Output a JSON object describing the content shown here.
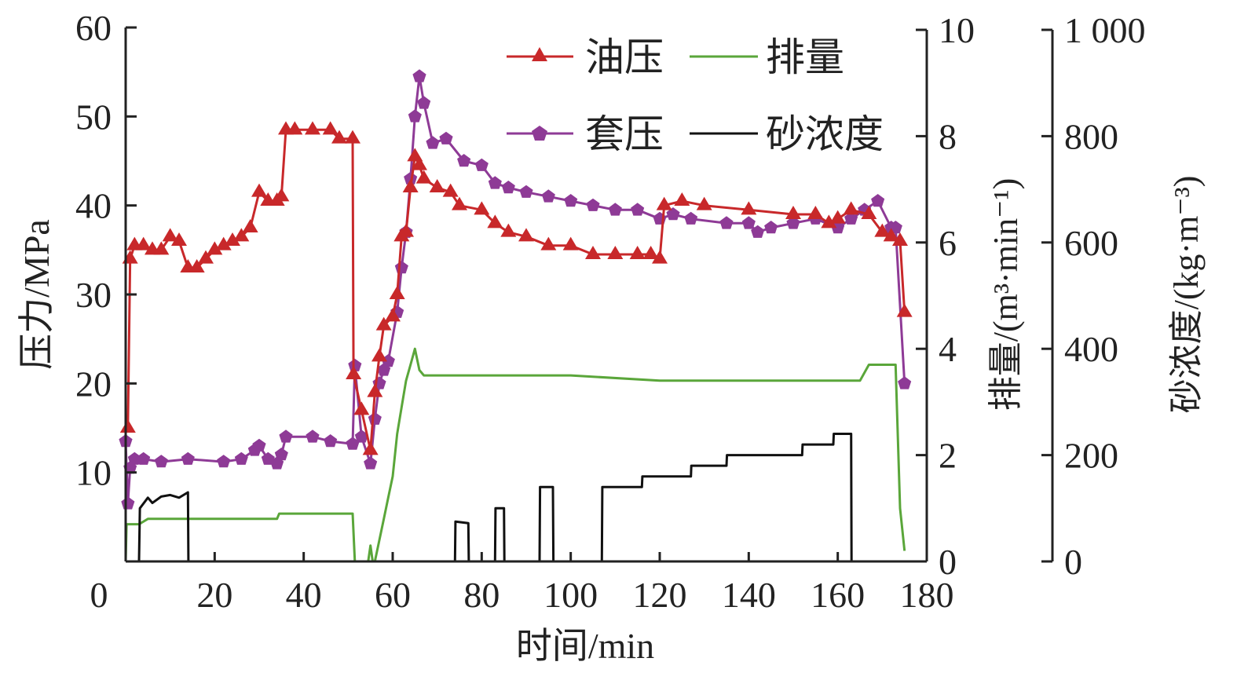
{
  "chart_data": {
    "type": "line",
    "title": "",
    "xlabel": "时间/min",
    "xlim": [
      0,
      180
    ],
    "xticks": [
      "0",
      "20",
      "40",
      "60",
      "80",
      "100",
      "120",
      "140",
      "160",
      "180"
    ],
    "axes": {
      "left": {
        "label": "压力/MPa",
        "lim": [
          0,
          60
        ],
        "ticks": [
          "10",
          "20",
          "30",
          "40",
          "50",
          "60"
        ]
      },
      "right1": {
        "label": "排量/(m³·min⁻¹)",
        "lim": [
          0,
          10
        ],
        "ticks": [
          "0",
          "2",
          "4",
          "6",
          "8",
          "10"
        ]
      },
      "right2": {
        "label": "砂浓度/(kg·m⁻³)",
        "lim": [
          0,
          1000
        ],
        "ticks": [
          "0",
          "200",
          "400",
          "600",
          "800",
          "1 000"
        ]
      }
    },
    "grid": false,
    "legend_position": "top-right",
    "series": [
      {
        "name": "油压",
        "axis": "left",
        "color": "#c8282a",
        "marker": "triangle",
        "x": [
          0.5,
          1,
          2,
          4,
          6,
          8,
          10,
          12,
          14,
          16,
          18,
          20,
          22,
          24,
          26,
          28,
          30,
          32,
          34,
          35,
          36,
          38,
          42,
          46,
          48,
          51,
          51.2,
          53,
          55,
          56,
          57,
          58,
          60,
          61,
          62,
          63,
          64,
          65,
          66,
          67,
          70,
          73,
          75,
          80,
          83,
          86,
          90,
          95,
          100,
          105,
          110,
          115,
          118,
          120,
          121,
          125,
          130,
          140,
          150,
          155,
          158,
          160,
          163,
          167,
          170,
          172,
          174,
          175
        ],
        "y": [
          15,
          34,
          35.5,
          35.5,
          35,
          35,
          36.5,
          36,
          33,
          33,
          34,
          35,
          35.5,
          36,
          36.5,
          37.5,
          41.5,
          40.5,
          40.5,
          41,
          48.5,
          48.5,
          48.5,
          48.5,
          47.5,
          47.5,
          21,
          17,
          12.5,
          19,
          23,
          26.5,
          27.5,
          30,
          36.5,
          37,
          42,
          45.5,
          44.5,
          43,
          42,
          41.5,
          40,
          39.5,
          38,
          37,
          36.5,
          35.5,
          35.5,
          34.5,
          34.5,
          34.5,
          34.5,
          34,
          40,
          40.5,
          40,
          39.5,
          39,
          39,
          38,
          38.5,
          39.5,
          39,
          37,
          36.5,
          36,
          28
        ]
      },
      {
        "name": "套压",
        "axis": "left",
        "color": "#8e3a96",
        "marker": "pentagon",
        "x": [
          0,
          0.5,
          1,
          2,
          4,
          8,
          14,
          22,
          26,
          29,
          30,
          32,
          34,
          35,
          36,
          42,
          46,
          51,
          51.5,
          53,
          55,
          56,
          57,
          58,
          59,
          61,
          62,
          63,
          64,
          65,
          66,
          67,
          69,
          72,
          76,
          80,
          83,
          86,
          90,
          95,
          100,
          105,
          110,
          115,
          120,
          123,
          127,
          135,
          140,
          142,
          145,
          150,
          155,
          160,
          163,
          166,
          169,
          172,
          173,
          175
        ],
        "y": [
          13.5,
          6.5,
          10.5,
          11.5,
          11.5,
          11.2,
          11.5,
          11.2,
          11.5,
          12.5,
          13,
          11.5,
          11,
          12,
          14,
          14,
          13.5,
          13.2,
          22,
          14,
          11,
          16,
          20,
          21.5,
          22.5,
          28,
          33,
          37,
          43,
          50,
          54.5,
          51.5,
          47,
          47.5,
          45,
          44.5,
          42.5,
          42,
          41.5,
          41,
          40.5,
          40,
          39.5,
          39.5,
          38.5,
          39,
          38.5,
          38,
          38,
          37,
          37.5,
          38,
          38.5,
          37.5,
          38.5,
          39.5,
          40.5,
          37.5,
          37.5,
          20
        ]
      },
      {
        "name": "排量",
        "axis": "right1",
        "color": "#5aa63a",
        "marker": "none",
        "x": [
          0,
          0.2,
          3,
          5,
          34,
          34.5,
          51,
          51.5,
          53,
          54.5,
          55,
          55.5,
          56,
          57,
          58,
          59,
          60,
          61,
          62,
          63,
          64,
          65,
          66,
          67,
          80,
          100,
          120,
          140,
          160,
          165,
          167,
          173,
          174,
          175
        ],
        "y": [
          0,
          0.7,
          0.7,
          0.8,
          0.8,
          0.9,
          0.9,
          0,
          0,
          0,
          0.3,
          0,
          0,
          0.4,
          0.8,
          1.2,
          1.6,
          2.4,
          2.9,
          3.4,
          3.7,
          4.0,
          3.6,
          3.5,
          3.5,
          3.5,
          3.4,
          3.4,
          3.4,
          3.4,
          3.7,
          3.7,
          1.0,
          0.2
        ]
      },
      {
        "name": "砂浓度",
        "axis": "right2",
        "color": "#111111",
        "marker": "none",
        "x": [
          3,
          3.2,
          5,
          6,
          8,
          10,
          12,
          14,
          14.1,
          74,
          74.1,
          77,
          77.1,
          83,
          83.1,
          85,
          85.1,
          93,
          93.1,
          96,
          96.1,
          107,
          107.1,
          116,
          116.1,
          127,
          127.1,
          135,
          135.1,
          152,
          152.1,
          159,
          159.1,
          163,
          163.1
        ],
        "y": [
          0,
          100,
          120,
          110,
          122,
          125,
          120,
          130,
          0,
          0,
          75,
          72,
          0,
          0,
          100,
          100,
          0,
          0,
          140,
          140,
          0,
          0,
          140,
          140,
          160,
          160,
          180,
          180,
          200,
          200,
          220,
          220,
          240,
          240,
          0
        ]
      }
    ]
  }
}
